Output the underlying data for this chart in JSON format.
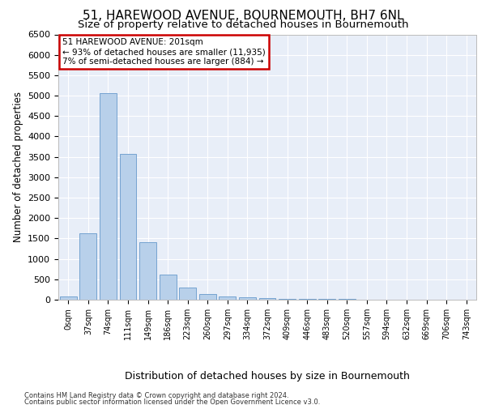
{
  "title": "51, HAREWOOD AVENUE, BOURNEMOUTH, BH7 6NL",
  "subtitle": "Size of property relative to detached houses in Bournemouth",
  "xlabel": "Distribution of detached houses by size in Bournemouth",
  "ylabel": "Number of detached properties",
  "footer_line1": "Contains HM Land Registry data © Crown copyright and database right 2024.",
  "footer_line2": "Contains public sector information licensed under the Open Government Licence v3.0.",
  "bar_labels": [
    "0sqm",
    "37sqm",
    "74sqm",
    "111sqm",
    "149sqm",
    "186sqm",
    "223sqm",
    "260sqm",
    "297sqm",
    "334sqm",
    "372sqm",
    "409sqm",
    "446sqm",
    "483sqm",
    "520sqm",
    "557sqm",
    "594sqm",
    "632sqm",
    "669sqm",
    "706sqm",
    "743sqm"
  ],
  "bar_values": [
    75,
    1630,
    5060,
    3570,
    1410,
    620,
    290,
    135,
    85,
    55,
    30,
    25,
    20,
    15,
    10,
    8,
    5,
    5,
    5,
    5,
    5
  ],
  "bar_color": "#b8d0ea",
  "bar_edge_color": "#6699cc",
  "annotation_title": "51 HAREWOOD AVENUE: 201sqm",
  "annotation_line1": "← 93% of detached houses are smaller (11,935)",
  "annotation_line2": "7% of semi-detached houses are larger (884) →",
  "annotation_box_color": "#cc0000",
  "ylim": [
    0,
    6500
  ],
  "yticks": [
    0,
    500,
    1000,
    1500,
    2000,
    2500,
    3000,
    3500,
    4000,
    4500,
    5000,
    5500,
    6000,
    6500
  ],
  "background_color": "#ffffff",
  "plot_bg_color": "#e8eef8",
  "grid_color": "#ffffff",
  "title_fontsize": 11,
  "subtitle_fontsize": 9.5
}
